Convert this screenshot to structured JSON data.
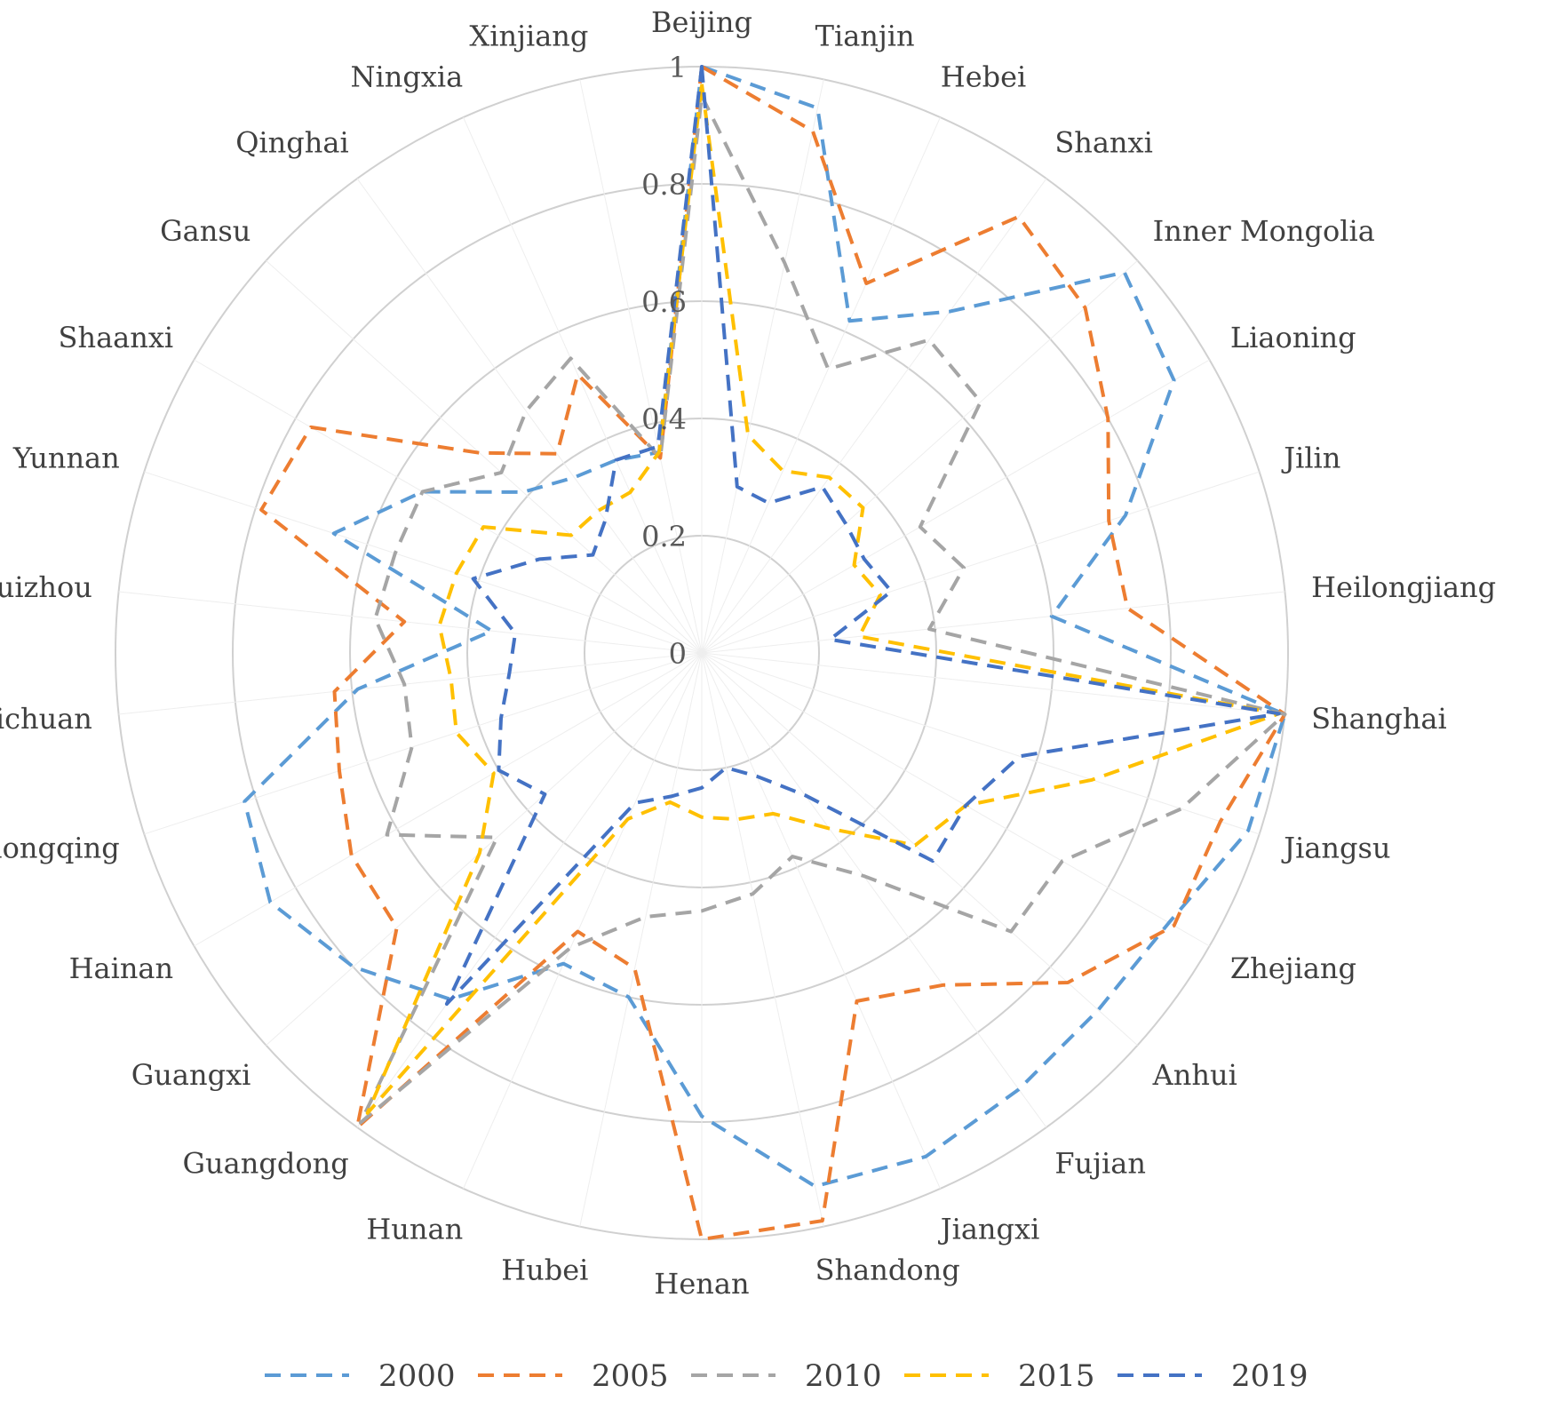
{
  "chart_data": {
    "type": "radar",
    "categories": [
      "Beijing",
      "Tianjin",
      "Hebei",
      "Shanxi",
      "Inner Mongolia",
      "Liaoning",
      "Jilin",
      "Heilongjiang",
      "Shanghai",
      "Jiangsu",
      "Zhejiang",
      "Anhui",
      "Fujian",
      "Jiangxi",
      "Shandong",
      "Henan",
      "Hubei",
      "Hunan",
      "Guangdong",
      "Guangxi",
      "Hainan",
      "chongqing",
      "Sichuan",
      "Guizhou",
      "Yunnan",
      "Shaanxi",
      "Gansu",
      "Qinghai",
      "Ningxia",
      "Xinjiang"
    ],
    "rlim": [
      0,
      1
    ],
    "ticks": [
      "0",
      "0.2",
      "0.4",
      "0.6",
      "0.8",
      "1"
    ],
    "legend_position": "bottom",
    "grid": true,
    "series": [
      {
        "name": "2000",
        "color": "#5B9BD5",
        "values": [
          1.0,
          0.95,
          0.62,
          0.72,
          0.97,
          0.93,
          0.76,
          0.6,
          1.0,
          0.98,
          0.92,
          0.91,
          0.92,
          0.94,
          0.93,
          0.79,
          0.6,
          0.58,
          0.73,
          0.8,
          0.85,
          0.82,
          0.59,
          0.36,
          0.66,
          0.55,
          0.41,
          0.37,
          0.36,
          0.35
        ]
      },
      {
        "name": "2005",
        "color": "#ED7D31",
        "values": [
          1.0,
          0.91,
          0.69,
          0.92,
          0.88,
          0.8,
          0.73,
          0.73,
          1.0,
          0.93,
          0.93,
          0.84,
          0.7,
          0.65,
          0.99,
          1.0,
          0.55,
          0.52,
          1.0,
          0.7,
          0.69,
          0.65,
          0.63,
          0.51,
          0.79,
          0.77,
          0.51,
          0.42,
          0.52,
          0.34
        ]
      },
      {
        "name": "2010",
        "color": "#A5A5A5",
        "values": [
          0.95,
          0.68,
          0.53,
          0.66,
          0.64,
          0.43,
          0.47,
          0.39,
          1.0,
          0.86,
          0.71,
          0.71,
          0.47,
          0.38,
          0.42,
          0.44,
          0.46,
          0.55,
          0.99,
          0.47,
          0.62,
          0.52,
          0.51,
          0.56,
          0.55,
          0.55,
          0.46,
          0.51,
          0.55,
          0.34
        ]
      },
      {
        "name": "2015",
        "color": "#FFC000",
        "values": [
          0.97,
          0.38,
          0.34,
          0.37,
          0.37,
          0.3,
          0.32,
          0.27,
          0.99,
          0.7,
          0.52,
          0.49,
          0.37,
          0.3,
          0.29,
          0.28,
          0.26,
          0.31,
          0.97,
          0.51,
          0.41,
          0.44,
          0.43,
          0.45,
          0.44,
          0.43,
          0.3,
          0.3,
          0.3,
          0.35
        ]
      },
      {
        "name": "2019",
        "color": "#4472C4",
        "values": [
          1.0,
          0.29,
          0.28,
          0.35,
          0.33,
          0.32,
          0.34,
          0.22,
          0.99,
          0.57,
          0.52,
          0.53,
          0.3,
          0.23,
          0.2,
          0.23,
          0.25,
          0.28,
          0.74,
          0.36,
          0.4,
          0.36,
          0.33,
          0.32,
          0.41,
          0.32,
          0.25,
          0.28,
          0.36,
          0.36
        ]
      }
    ]
  }
}
